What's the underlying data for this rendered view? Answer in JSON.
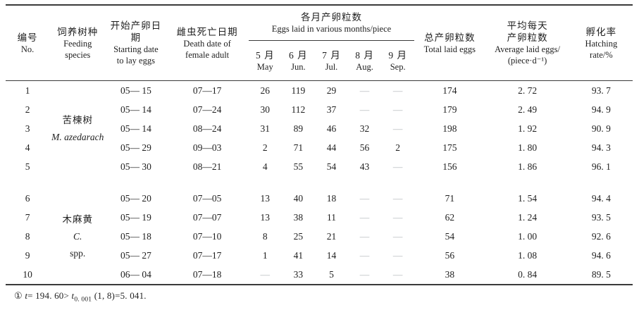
{
  "table": {
    "header": {
      "no": {
        "zh": "编号",
        "en": "No."
      },
      "species": {
        "zh": "饲养树种",
        "en1": "Feeding",
        "en2": "species"
      },
      "start": {
        "zh": "开始产卵日期",
        "en1": "Starting date",
        "en2": "to lay eggs"
      },
      "death": {
        "zh": "雌虫死亡日期",
        "en1": "Death date of",
        "en2": "female adult"
      },
      "months_group": {
        "zh": "各月产卵粒数",
        "en": "Eggs laid in various months/piece"
      },
      "months": [
        {
          "zh": "5 月",
          "en": "May"
        },
        {
          "zh": "6 月",
          "en": "Jun."
        },
        {
          "zh": "7 月",
          "en": "Jul."
        },
        {
          "zh": "8 月",
          "en": "Aug."
        },
        {
          "zh": "9 月",
          "en": "Sep."
        }
      ],
      "total": {
        "zh": "总产卵粒数",
        "en": "Total laid eggs"
      },
      "average": {
        "zh1": "平均每天",
        "zh2": "产卵粒数",
        "en1": "Average laid eggs/",
        "en2": "(piece·d⁻¹)"
      },
      "hatch": {
        "zh": "孵化率",
        "en1": "Hatching",
        "en2": "rate/%"
      }
    },
    "groups": [
      {
        "lines": [
          {
            "text": "苦楝树",
            "italic": false,
            "latin": false
          },
          {
            "text": "M. azedarach",
            "italic": true,
            "latin": true
          }
        ]
      },
      {
        "lines": [
          {
            "text": "木麻黄",
            "italic": false,
            "latin": false
          },
          {
            "text": "C.",
            "italic": true,
            "latin": true
          },
          {
            "text": "spp.",
            "italic": false,
            "latin": true
          }
        ]
      }
    ],
    "rows": [
      {
        "no": "1",
        "start": "05— 15",
        "death": "07—17",
        "may": "26",
        "jun": "119",
        "jul": "29",
        "aug": "—",
        "sep": "—",
        "total": "174",
        "avg": "2. 72",
        "hatch": "93. 7"
      },
      {
        "no": "2",
        "start": "05— 14",
        "death": "07—24",
        "may": "30",
        "jun": "112",
        "jul": "37",
        "aug": "—",
        "sep": "—",
        "total": "179",
        "avg": "2. 49",
        "hatch": "94. 9"
      },
      {
        "no": "3",
        "start": "05— 14",
        "death": "08—24",
        "may": "31",
        "jun": "89",
        "jul": "46",
        "aug": "32",
        "sep": "—",
        "total": "198",
        "avg": "1. 92",
        "hatch": "90. 9"
      },
      {
        "no": "4",
        "start": "05— 29",
        "death": "09—03",
        "may": "2",
        "jun": "71",
        "jul": "44",
        "aug": "56",
        "sep": "2",
        "total": "175",
        "avg": "1. 80",
        "hatch": "94. 3"
      },
      {
        "no": "5",
        "start": "05— 30",
        "death": "08—21",
        "may": "4",
        "jun": "55",
        "jul": "54",
        "aug": "43",
        "sep": "—",
        "total": "156",
        "avg": "1. 86",
        "hatch": "96. 1"
      },
      {
        "no": "6",
        "start": "05— 20",
        "death": "07—05",
        "may": "13",
        "jun": "40",
        "jul": "18",
        "aug": "—",
        "sep": "—",
        "total": "71",
        "avg": "1. 54",
        "hatch": "94. 4"
      },
      {
        "no": "7",
        "start": "05— 19",
        "death": "07—07",
        "may": "13",
        "jun": "38",
        "jul": "11",
        "aug": "—",
        "sep": "—",
        "total": "62",
        "avg": "1. 24",
        "hatch": "93. 5"
      },
      {
        "no": "8",
        "start": "05— 18",
        "death": "07—10",
        "may": "8",
        "jun": "25",
        "jul": "21",
        "aug": "—",
        "sep": "—",
        "total": "54",
        "avg": "1. 00",
        "hatch": "92. 6"
      },
      {
        "no": "9",
        "start": "05— 27",
        "death": "07—17",
        "may": "1",
        "jun": "41",
        "jul": "14",
        "aug": "—",
        "sep": "—",
        "total": "56",
        "avg": "1. 08",
        "hatch": "94. 6"
      },
      {
        "no": "10",
        "start": "06— 04",
        "death": "07—18",
        "may": "—",
        "jun": "33",
        "jul": "5",
        "aug": "—",
        "sep": "—",
        "total": "38",
        "avg": "0. 84",
        "hatch": "89. 5"
      }
    ],
    "footnote": {
      "marker": "① ",
      "t1": "t",
      "s1": "= 194. 60>  ",
      "t2": "t",
      "sub": "0. 001",
      "s2": " (1, 8)=5. 041."
    }
  }
}
